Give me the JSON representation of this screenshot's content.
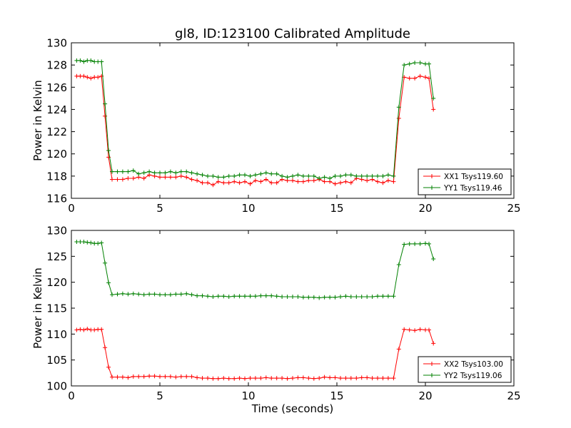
{
  "title": "gl8, ID:123100 Calibrated Amplitude",
  "chart_data": [
    {
      "type": "line",
      "title": "gl8, ID:123100 Calibrated Amplitude",
      "xlabel": "",
      "ylabel": "Power in Kelvin",
      "xlim": [
        0,
        25
      ],
      "ylim": [
        116,
        130
      ],
      "xticks": [
        0,
        5,
        10,
        15,
        20,
        25
      ],
      "yticks": [
        116,
        118,
        120,
        122,
        124,
        126,
        128,
        130
      ],
      "grid": false,
      "legend_position": "lower-right",
      "x": [
        0.3,
        0.5,
        0.7,
        0.9,
        1.1,
        1.3,
        1.5,
        1.7,
        1.9,
        2.1,
        2.3,
        2.6,
        2.9,
        3.2,
        3.5,
        3.8,
        4.1,
        4.4,
        4.7,
        5.0,
        5.3,
        5.6,
        5.9,
        6.2,
        6.5,
        6.8,
        7.1,
        7.4,
        7.7,
        8.0,
        8.3,
        8.6,
        8.9,
        9.2,
        9.5,
        9.8,
        10.1,
        10.4,
        10.7,
        11.0,
        11.3,
        11.6,
        11.9,
        12.2,
        12.5,
        12.8,
        13.1,
        13.4,
        13.7,
        14.0,
        14.3,
        14.6,
        14.9,
        15.2,
        15.5,
        15.8,
        16.1,
        16.4,
        16.7,
        17.0,
        17.3,
        17.6,
        17.9,
        18.2,
        18.5,
        18.8,
        19.1,
        19.4,
        19.7,
        20.0,
        20.2,
        20.45
      ],
      "series": [
        {
          "name": "XX1 Tsys119.60",
          "color": "#ff0000",
          "values": [
            127.0,
            127.0,
            127.0,
            126.9,
            126.8,
            126.9,
            126.9,
            127.0,
            123.4,
            119.7,
            117.7,
            117.7,
            117.7,
            117.8,
            117.8,
            117.9,
            117.8,
            118.1,
            118.0,
            117.9,
            117.9,
            117.9,
            117.9,
            118.0,
            117.9,
            117.7,
            117.6,
            117.4,
            117.4,
            117.2,
            117.5,
            117.4,
            117.4,
            117.5,
            117.4,
            117.5,
            117.3,
            117.6,
            117.5,
            117.7,
            117.4,
            117.4,
            117.7,
            117.6,
            117.6,
            117.5,
            117.5,
            117.6,
            117.6,
            117.7,
            117.5,
            117.5,
            117.3,
            117.4,
            117.5,
            117.4,
            117.8,
            117.7,
            117.6,
            117.7,
            117.5,
            117.4,
            117.6,
            117.5,
            123.2,
            126.9,
            126.8,
            126.8,
            127.0,
            126.9,
            126.8,
            124.0
          ]
        },
        {
          "name": "YY1 Tsys119.46",
          "color": "#008000",
          "values": [
            128.4,
            128.4,
            128.3,
            128.4,
            128.4,
            128.3,
            128.3,
            128.3,
            124.5,
            120.3,
            118.4,
            118.4,
            118.4,
            118.4,
            118.5,
            118.2,
            118.3,
            118.4,
            118.3,
            118.3,
            118.3,
            118.4,
            118.3,
            118.4,
            118.4,
            118.3,
            118.2,
            118.1,
            118.0,
            118.0,
            117.9,
            117.9,
            118.0,
            118.0,
            118.1,
            118.1,
            118.0,
            118.1,
            118.2,
            118.3,
            118.2,
            118.2,
            118.0,
            117.9,
            118.0,
            118.1,
            118.0,
            118.0,
            118.0,
            117.8,
            117.9,
            117.8,
            118.0,
            118.0,
            118.1,
            118.1,
            118.0,
            118.0,
            118.0,
            118.0,
            118.0,
            118.0,
            118.1,
            118.0,
            124.2,
            128.0,
            128.1,
            128.2,
            128.2,
            128.1,
            128.1,
            125.0
          ]
        }
      ]
    },
    {
      "type": "line",
      "title": "",
      "xlabel": "Time (seconds)",
      "ylabel": "Power in Kelvin",
      "xlim": [
        0,
        25
      ],
      "ylim": [
        100,
        130
      ],
      "xticks": [
        0,
        5,
        10,
        15,
        20,
        25
      ],
      "yticks": [
        100,
        105,
        110,
        115,
        120,
        125,
        130
      ],
      "grid": false,
      "legend_position": "lower-right",
      "x": [
        0.3,
        0.5,
        0.7,
        0.9,
        1.1,
        1.3,
        1.5,
        1.7,
        1.9,
        2.1,
        2.3,
        2.6,
        2.9,
        3.2,
        3.5,
        3.8,
        4.1,
        4.4,
        4.7,
        5.0,
        5.3,
        5.6,
        5.9,
        6.2,
        6.5,
        6.8,
        7.1,
        7.4,
        7.7,
        8.0,
        8.3,
        8.6,
        8.9,
        9.2,
        9.5,
        9.8,
        10.1,
        10.4,
        10.7,
        11.0,
        11.3,
        11.6,
        11.9,
        12.2,
        12.5,
        12.8,
        13.1,
        13.4,
        13.7,
        14.0,
        14.3,
        14.6,
        14.9,
        15.2,
        15.5,
        15.8,
        16.1,
        16.4,
        16.7,
        17.0,
        17.3,
        17.6,
        17.9,
        18.2,
        18.5,
        18.8,
        19.1,
        19.4,
        19.7,
        20.0,
        20.2,
        20.45
      ],
      "series": [
        {
          "name": "XX2 Tsys103.00",
          "color": "#ff0000",
          "values": [
            110.8,
            110.9,
            110.8,
            111.0,
            110.8,
            110.8,
            110.9,
            110.9,
            107.4,
            103.6,
            101.7,
            101.7,
            101.7,
            101.6,
            101.8,
            101.8,
            101.8,
            101.9,
            101.9,
            101.8,
            101.8,
            101.8,
            101.7,
            101.8,
            101.8,
            101.8,
            101.6,
            101.5,
            101.5,
            101.4,
            101.4,
            101.5,
            101.4,
            101.4,
            101.5,
            101.4,
            101.5,
            101.5,
            101.5,
            101.6,
            101.5,
            101.5,
            101.5,
            101.4,
            101.5,
            101.6,
            101.6,
            101.5,
            101.4,
            101.5,
            101.7,
            101.6,
            101.6,
            101.5,
            101.5,
            101.5,
            101.5,
            101.6,
            101.6,
            101.5,
            101.5,
            101.5,
            101.5,
            101.5,
            107.1,
            110.9,
            110.8,
            110.7,
            110.9,
            110.8,
            110.8,
            108.2
          ]
        },
        {
          "name": "YY2 Tsys119.06",
          "color": "#008000",
          "values": [
            127.8,
            127.8,
            127.8,
            127.7,
            127.6,
            127.5,
            127.5,
            127.6,
            123.7,
            119.9,
            117.6,
            117.7,
            117.8,
            117.7,
            117.8,
            117.7,
            117.6,
            117.7,
            117.7,
            117.6,
            117.6,
            117.6,
            117.7,
            117.7,
            117.8,
            117.6,
            117.4,
            117.4,
            117.3,
            117.2,
            117.3,
            117.3,
            117.2,
            117.3,
            117.3,
            117.3,
            117.3,
            117.3,
            117.4,
            117.4,
            117.4,
            117.3,
            117.2,
            117.2,
            117.2,
            117.2,
            117.1,
            117.1,
            117.1,
            117.0,
            117.1,
            117.1,
            117.1,
            117.2,
            117.3,
            117.2,
            117.2,
            117.2,
            117.2,
            117.2,
            117.3,
            117.3,
            117.3,
            117.3,
            123.4,
            127.3,
            127.4,
            127.4,
            127.4,
            127.5,
            127.4,
            124.5
          ]
        }
      ]
    }
  ]
}
